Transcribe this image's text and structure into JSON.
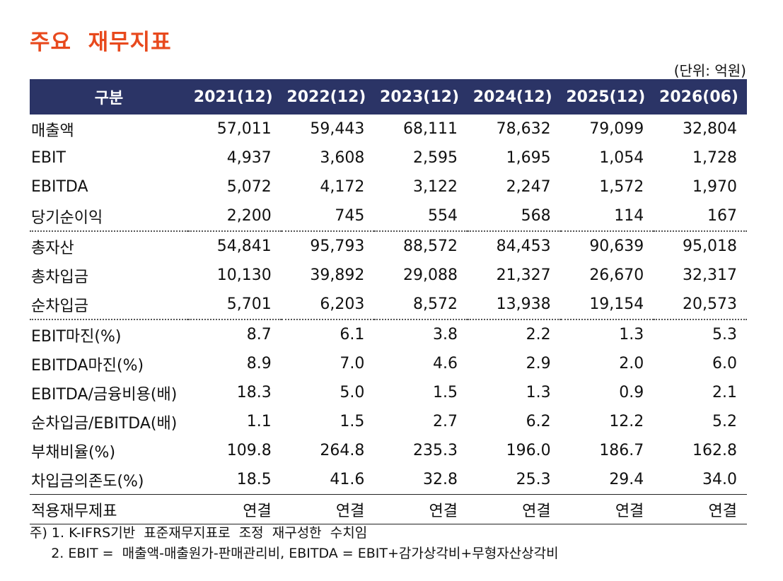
{
  "title": "주요  재무지표",
  "unit": "(단위: 억원)",
  "header": [
    "구분",
    "2021(12)",
    "2022(12)",
    "2023(12)",
    "2024(12)",
    "2025(12)",
    "2026(06)"
  ],
  "rows": [
    {
      "label": "매출액",
      "values": [
        "57,011",
        "59,443",
        "68,111",
        "78,632",
        "79,099",
        "32,804"
      ]
    },
    {
      "label": "EBIT",
      "values": [
        "4,937",
        "3,608",
        "2,595",
        "1,695",
        "1,054",
        "1,728"
      ]
    },
    {
      "label": "EBITDA",
      "values": [
        "5,072",
        "4,172",
        "3,122",
        "2,247",
        "1,572",
        "1,970"
      ]
    },
    {
      "label": "당기순이익",
      "values": [
        "2,200",
        "745",
        "554",
        "568",
        "114",
        "167"
      ]
    },
    {
      "label": "총자산",
      "values": [
        "54,841",
        "95,793",
        "88,572",
        "84,453",
        "90,639",
        "95,018"
      ]
    },
    {
      "label": "총차입금",
      "values": [
        "10,130",
        "39,892",
        "29,088",
        "21,327",
        "26,670",
        "32,317"
      ]
    },
    {
      "label": "순차입금",
      "values": [
        "5,701",
        "6,203",
        "8,572",
        "13,938",
        "19,154",
        "20,573"
      ]
    },
    {
      "label": "EBIT마진(%)",
      "values": [
        "8.7",
        "6.1",
        "3.8",
        "2.2",
        "1.3",
        "5.3"
      ]
    },
    {
      "label": "EBITDA마진(%)",
      "values": [
        "8.9",
        "7.0",
        "4.6",
        "2.9",
        "2.0",
        "6.0"
      ]
    },
    {
      "label": "EBITDA/금융비용(배)",
      "values": [
        "18.3",
        "5.0",
        "1.5",
        "1.3",
        "0.9",
        "2.1"
      ]
    },
    {
      "label": "순차입금/EBITDA(배)",
      "values": [
        "1.1",
        "1.5",
        "2.7",
        "6.2",
        "12.2",
        "5.2"
      ]
    },
    {
      "label": "부채비율(%)",
      "values": [
        "109.8",
        "264.8",
        "235.3",
        "196.0",
        "186.7",
        "162.8"
      ]
    },
    {
      "label": "차입금의존도(%)",
      "values": [
        "18.5",
        "41.6",
        "32.8",
        "25.3",
        "29.4",
        "34.0"
      ]
    },
    {
      "label": "적용재무제표",
      "values": [
        "연결",
        "연결",
        "연결",
        "연결",
        "연결",
        "연결"
      ]
    }
  ],
  "notes": [
    "주) 1. K-IFRS기반  표준재무지표로  조정  재구성한  수치임",
    "     2. EBIT =  매출액-매출원가-판매관리비, EBITDA = EBIT+감가상각비+무형자산상각비"
  ],
  "colors": {
    "accent": "#e8491d",
    "header_bg": "#2b3466"
  }
}
